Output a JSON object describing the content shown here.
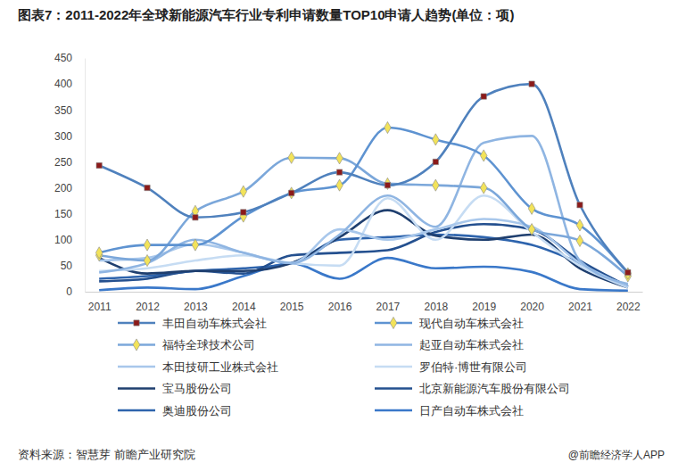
{
  "chart_data": {
    "type": "line",
    "title": "图表7：2011-2022年全球新能源汽车行业专利申请数量TOP10申请人趋势(单位：项)",
    "source": "资料来源：智慧芽 前瞻产业研究院",
    "credit": "@前瞻经济学人APP",
    "categories": [
      "2011",
      "2012",
      "2013",
      "2014",
      "2015",
      "2016",
      "2017",
      "2018",
      "2019",
      "2020",
      "2021",
      "2022"
    ],
    "ylim": [
      0,
      450
    ],
    "yticks": [
      0,
      50,
      100,
      150,
      200,
      250,
      300,
      350,
      400,
      450
    ],
    "grid": false,
    "legend": "bottom",
    "series": [
      {
        "name": "丰田自动车株式会社",
        "color": "#4f81bd",
        "marker": "square",
        "values": [
          243,
          200,
          143,
          153,
          190,
          230,
          205,
          250,
          376,
          400,
          167,
          37
        ]
      },
      {
        "name": "现代自动车株式会社",
        "color": "#5e93d1",
        "marker": "diamond",
        "values": [
          75,
          90,
          90,
          145,
          190,
          205,
          316,
          293,
          262,
          160,
          128,
          35
        ]
      },
      {
        "name": "福特全球技术公司",
        "color": "#7ba7da",
        "marker": "diamond",
        "values": [
          70,
          60,
          155,
          193,
          258,
          257,
          208,
          205,
          200,
          120,
          98,
          30
        ]
      },
      {
        "name": "起亚自动车株式会社",
        "color": "#8fb5e2",
        "values": [
          37,
          55,
          100,
          75,
          55,
          110,
          185,
          125,
          287,
          300,
          60,
          15
        ]
      },
      {
        "name": "本田技研工业株式会社",
        "color": "#a8c7eb",
        "values": [
          60,
          65,
          92,
          75,
          55,
          120,
          100,
          120,
          140,
          125,
          55,
          10
        ]
      },
      {
        "name": "罗伯特·博世有限公司",
        "color": "#c6dcf3",
        "values": [
          40,
          45,
          60,
          70,
          55,
          50,
          180,
          100,
          185,
          115,
          50,
          8
        ]
      },
      {
        "name": "宝马股份公司",
        "color": "#1f3f6f",
        "values": [
          65,
          35,
          40,
          40,
          55,
          105,
          157,
          108,
          100,
          110,
          45,
          8
        ]
      },
      {
        "name": "北京新能源汽车股份有限公司",
        "color": "#24508f",
        "values": [
          20,
          25,
          40,
          35,
          70,
          75,
          80,
          115,
          130,
          120,
          60,
          10
        ]
      },
      {
        "name": "奥迪股份公司",
        "color": "#2e64ad",
        "values": [
          25,
          30,
          40,
          45,
          55,
          100,
          105,
          110,
          105,
          90,
          55,
          10
        ]
      },
      {
        "name": "日产自动车株式会社",
        "color": "#3a78c9",
        "values": [
          3,
          8,
          5,
          30,
          55,
          25,
          65,
          45,
          48,
          38,
          5,
          2
        ]
      }
    ]
  }
}
